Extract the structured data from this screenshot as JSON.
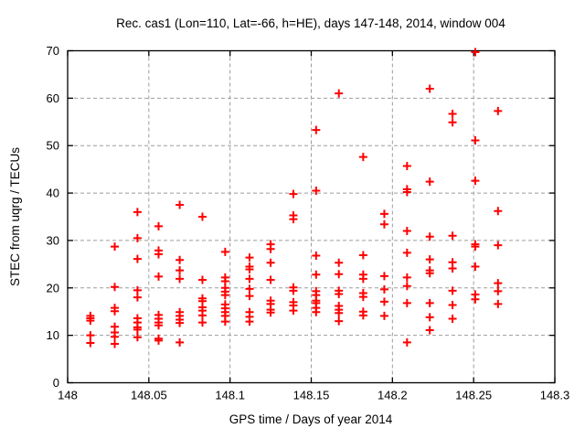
{
  "chart_data": {
    "type": "scatter",
    "title": "Rec. cas1 (Lon=110, Lat=-66, h=HE), days 147-148, 2014, window 004",
    "xlabel": "GPS time / Days of year 2014",
    "ylabel": "STEC from uqrg / TECUs",
    "xlim": [
      148,
      148.3
    ],
    "ylim": [
      0,
      70
    ],
    "xticks": [
      148,
      148.05,
      148.1,
      148.15,
      148.2,
      148.25,
      148.3
    ],
    "xtick_labels": [
      "148",
      "148.05",
      "148.1",
      "148.15",
      "148.2",
      "148.25",
      "148.3"
    ],
    "yticks": [
      0,
      10,
      20,
      30,
      40,
      50,
      60,
      70
    ],
    "ytick_labels": [
      "0",
      "10",
      "20",
      "30",
      "40",
      "50",
      "60",
      "70"
    ],
    "grid": true,
    "grid_style": "dashed",
    "legend": "none",
    "marker": "plus",
    "marker_color": "#ff0000",
    "grid_color": "#9c9c9c",
    "axis_color": "#000000",
    "background": "#ffffff",
    "series": [
      {
        "name": "STEC",
        "points": [
          [
            148.014,
            14.1
          ],
          [
            148.014,
            13.6
          ],
          [
            148.014,
            13.1
          ],
          [
            148.014,
            10.0
          ],
          [
            148.014,
            8.4
          ],
          [
            148.029,
            28.7
          ],
          [
            148.029,
            20.2
          ],
          [
            148.029,
            15.8
          ],
          [
            148.029,
            15.1
          ],
          [
            148.029,
            11.8
          ],
          [
            148.029,
            10.6
          ],
          [
            148.029,
            9.7
          ],
          [
            148.029,
            8.2
          ],
          [
            148.043,
            36.0
          ],
          [
            148.043,
            30.5
          ],
          [
            148.043,
            26.1
          ],
          [
            148.043,
            19.5
          ],
          [
            148.043,
            18.0
          ],
          [
            148.043,
            13.6
          ],
          [
            148.043,
            12.7
          ],
          [
            148.043,
            11.7
          ],
          [
            148.043,
            11.2
          ],
          [
            148.043,
            9.6
          ],
          [
            148.056,
            33.0
          ],
          [
            148.056,
            27.9
          ],
          [
            148.056,
            27.1
          ],
          [
            148.056,
            22.4
          ],
          [
            148.056,
            14.3
          ],
          [
            148.056,
            13.5
          ],
          [
            148.056,
            12.7
          ],
          [
            148.056,
            12.1
          ],
          [
            148.056,
            9.3
          ],
          [
            148.056,
            8.9
          ],
          [
            148.069,
            37.5
          ],
          [
            148.069,
            25.9
          ],
          [
            148.069,
            23.7
          ],
          [
            148.069,
            21.9
          ],
          [
            148.069,
            14.9
          ],
          [
            148.069,
            14.1
          ],
          [
            148.069,
            13.3
          ],
          [
            148.069,
            12.6
          ],
          [
            148.069,
            8.5
          ],
          [
            148.083,
            35.0
          ],
          [
            148.083,
            21.7
          ],
          [
            148.083,
            17.8
          ],
          [
            148.083,
            17.2
          ],
          [
            148.083,
            15.9
          ],
          [
            148.083,
            15.2
          ],
          [
            148.083,
            14.2
          ],
          [
            148.083,
            12.7
          ],
          [
            148.097,
            27.6
          ],
          [
            148.097,
            22.2
          ],
          [
            148.097,
            21.4
          ],
          [
            148.097,
            20.0
          ],
          [
            148.097,
            19.2
          ],
          [
            148.097,
            18.5
          ],
          [
            148.097,
            16.5
          ],
          [
            148.097,
            15.7
          ],
          [
            148.097,
            14.9
          ],
          [
            148.097,
            14.1
          ],
          [
            148.097,
            12.9
          ],
          [
            148.112,
            26.4
          ],
          [
            148.112,
            24.5
          ],
          [
            148.112,
            23.9
          ],
          [
            148.112,
            21.9
          ],
          [
            148.112,
            19.8
          ],
          [
            148.112,
            18.3
          ],
          [
            148.112,
            14.9
          ],
          [
            148.112,
            13.9
          ],
          [
            148.112,
            12.9
          ],
          [
            148.125,
            29.2
          ],
          [
            148.125,
            28.2
          ],
          [
            148.125,
            25.3
          ],
          [
            148.125,
            21.7
          ],
          [
            148.125,
            17.3
          ],
          [
            148.125,
            16.6
          ],
          [
            148.125,
            15.4
          ],
          [
            148.125,
            14.8
          ],
          [
            148.139,
            39.8
          ],
          [
            148.139,
            35.3
          ],
          [
            148.139,
            34.5
          ],
          [
            148.139,
            20.1
          ],
          [
            148.139,
            19.4
          ],
          [
            148.139,
            17.0
          ],
          [
            148.139,
            16.3
          ],
          [
            148.139,
            15.2
          ],
          [
            148.153,
            53.3
          ],
          [
            148.153,
            40.5
          ],
          [
            148.153,
            26.8
          ],
          [
            148.153,
            22.8
          ],
          [
            148.153,
            19.3
          ],
          [
            148.153,
            18.5
          ],
          [
            148.153,
            17.3
          ],
          [
            148.153,
            16.8
          ],
          [
            148.153,
            15.8
          ],
          [
            148.153,
            14.9
          ],
          [
            148.167,
            61.0
          ],
          [
            148.167,
            25.3
          ],
          [
            148.167,
            22.9
          ],
          [
            148.167,
            19.4
          ],
          [
            148.167,
            18.7
          ],
          [
            148.167,
            16.2
          ],
          [
            148.167,
            15.4
          ],
          [
            148.167,
            14.7
          ],
          [
            148.167,
            13.0
          ],
          [
            148.182,
            47.6
          ],
          [
            148.182,
            26.9
          ],
          [
            148.182,
            22.8
          ],
          [
            148.182,
            21.9
          ],
          [
            148.182,
            18.9
          ],
          [
            148.182,
            18.1
          ],
          [
            148.182,
            15.0
          ],
          [
            148.182,
            14.2
          ],
          [
            148.195,
            35.6
          ],
          [
            148.195,
            33.4
          ],
          [
            148.195,
            22.5
          ],
          [
            148.195,
            19.7
          ],
          [
            148.195,
            17.1
          ],
          [
            148.195,
            14.1
          ],
          [
            148.209,
            45.7
          ],
          [
            148.209,
            40.8
          ],
          [
            148.209,
            40.2
          ],
          [
            148.209,
            32.0
          ],
          [
            148.209,
            27.4
          ],
          [
            148.209,
            22.2
          ],
          [
            148.209,
            20.4
          ],
          [
            148.209,
            16.8
          ],
          [
            148.209,
            8.5
          ],
          [
            148.223,
            62.0
          ],
          [
            148.223,
            42.4
          ],
          [
            148.223,
            30.8
          ],
          [
            148.223,
            26.0
          ],
          [
            148.223,
            23.7
          ],
          [
            148.223,
            23.1
          ],
          [
            148.223,
            16.8
          ],
          [
            148.223,
            13.8
          ],
          [
            148.223,
            11.1
          ],
          [
            148.237,
            56.7
          ],
          [
            148.237,
            54.9
          ],
          [
            148.237,
            31.0
          ],
          [
            148.237,
            25.4
          ],
          [
            148.237,
            24.1
          ],
          [
            148.237,
            19.4
          ],
          [
            148.237,
            16.4
          ],
          [
            148.237,
            13.5
          ],
          [
            148.251,
            69.7
          ],
          [
            148.251,
            51.1
          ],
          [
            148.251,
            42.6
          ],
          [
            148.251,
            29.2
          ],
          [
            148.251,
            28.7
          ],
          [
            148.251,
            24.5
          ],
          [
            148.251,
            18.6
          ],
          [
            148.251,
            17.6
          ],
          [
            148.265,
            57.3
          ],
          [
            148.265,
            36.2
          ],
          [
            148.265,
            29.0
          ],
          [
            148.265,
            21.0
          ],
          [
            148.265,
            19.3
          ],
          [
            148.265,
            16.6
          ]
        ]
      }
    ]
  }
}
